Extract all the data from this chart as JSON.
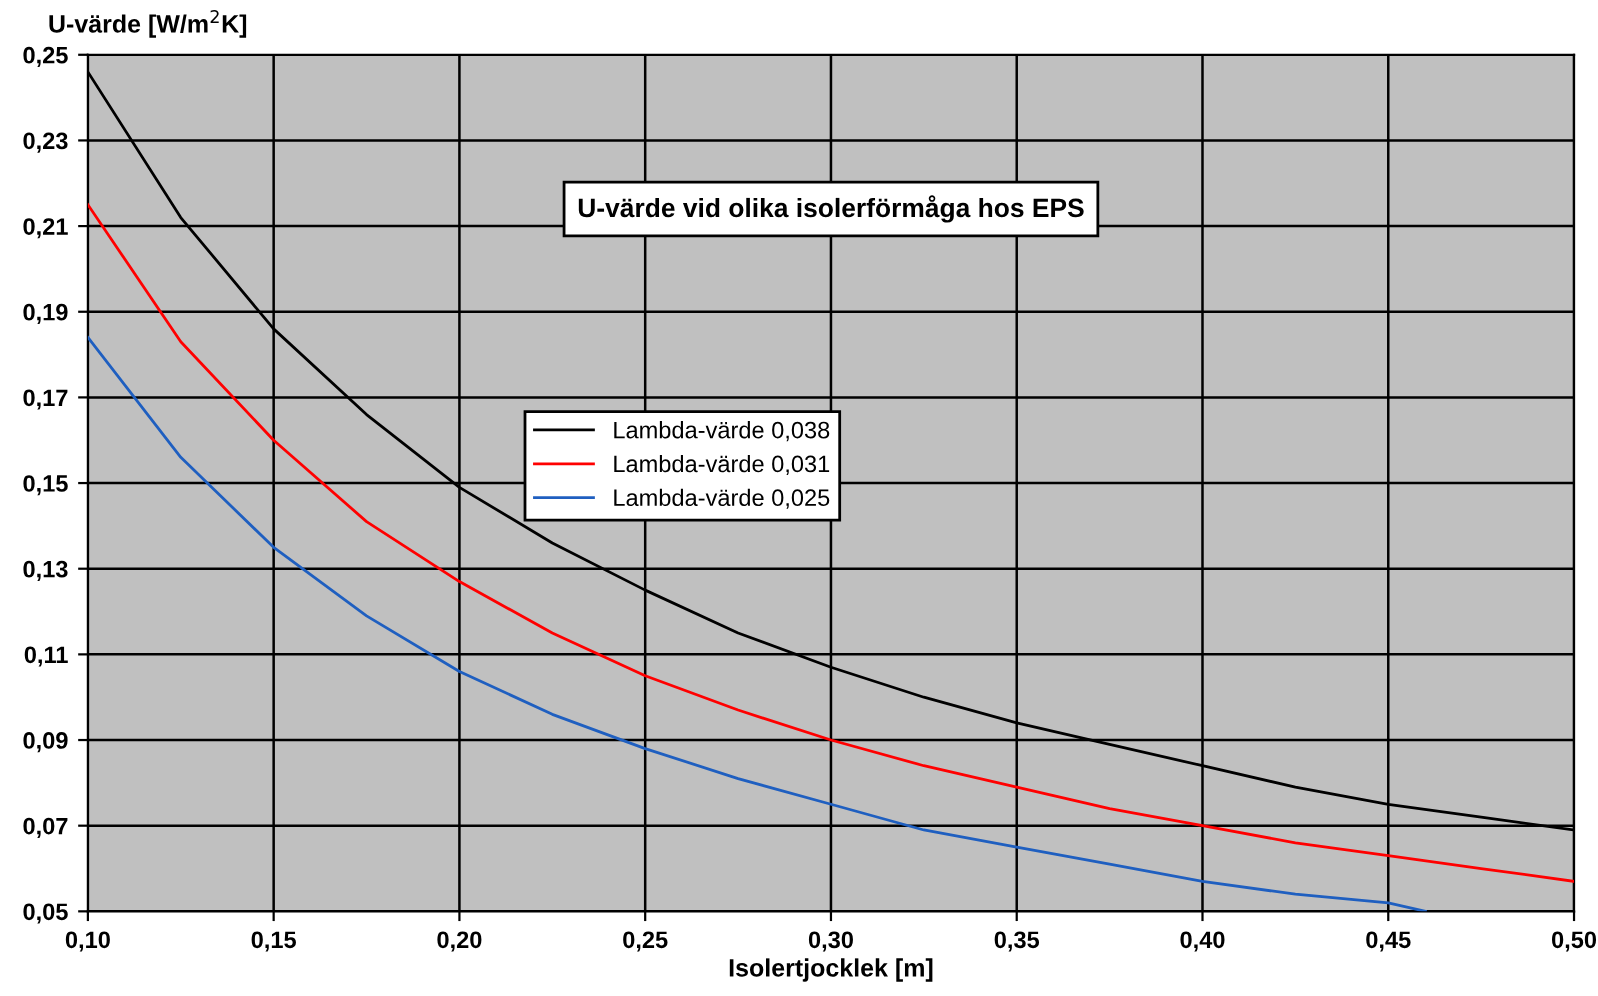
{
  "chart_data": {
    "type": "line",
    "title": "U-värde vid olika isolerförmåga hos EPS",
    "xlabel": "Isolertjocklek [m]",
    "ylabel": "U-värde [W/m$^{2}$K]",
    "xlim": [
      0.1,
      0.5
    ],
    "ylim": [
      0.05,
      0.25
    ],
    "xticks": [
      {
        "value": 0.1,
        "label": "0,10"
      },
      {
        "value": 0.15,
        "label": "0,15"
      },
      {
        "value": 0.2,
        "label": "0,20"
      },
      {
        "value": 0.25,
        "label": "0,25"
      },
      {
        "value": 0.3,
        "label": "0,30"
      },
      {
        "value": 0.35,
        "label": "0,35"
      },
      {
        "value": 0.4,
        "label": "0,40"
      },
      {
        "value": 0.45,
        "label": "0,45"
      },
      {
        "value": 0.5,
        "label": "0,50"
      }
    ],
    "yticks": [
      {
        "value": 0.05,
        "label": "0,05"
      },
      {
        "value": 0.07,
        "label": "0,07"
      },
      {
        "value": 0.09,
        "label": "0,09"
      },
      {
        "value": 0.11,
        "label": "0,11"
      },
      {
        "value": 0.13,
        "label": "0,13"
      },
      {
        "value": 0.15,
        "label": "0,15"
      },
      {
        "value": 0.17,
        "label": "0,17"
      },
      {
        "value": 0.19,
        "label": "0,19"
      },
      {
        "value": 0.21,
        "label": "0,21"
      },
      {
        "value": 0.23,
        "label": "0,23"
      },
      {
        "value": 0.25,
        "label": "0,25"
      }
    ],
    "grid": true,
    "legend": "center",
    "marker": "none",
    "line_style": "solid",
    "series": [
      {
        "name": "Lambda-värde 0,038",
        "color": "#000000",
        "x": [
          0.1,
          0.125,
          0.15,
          0.175,
          0.2,
          0.225,
          0.25,
          0.275,
          0.3,
          0.325,
          0.35,
          0.375,
          0.4,
          0.425,
          0.45,
          0.475,
          0.5
        ],
        "values": [
          0.246,
          0.212,
          0.186,
          0.166,
          0.149,
          0.136,
          0.125,
          0.115,
          0.107,
          0.1,
          0.094,
          0.089,
          0.084,
          0.079,
          0.075,
          0.072,
          0.069
        ]
      },
      {
        "name": "Lambda-värde 0,031",
        "color": "#ff0000",
        "x": [
          0.1,
          0.125,
          0.15,
          0.175,
          0.2,
          0.225,
          0.25,
          0.275,
          0.3,
          0.325,
          0.35,
          0.375,
          0.4,
          0.425,
          0.45,
          0.475,
          0.5
        ],
        "values": [
          0.215,
          0.183,
          0.16,
          0.141,
          0.127,
          0.115,
          0.105,
          0.097,
          0.09,
          0.084,
          0.079,
          0.074,
          0.07,
          0.066,
          0.063,
          0.06,
          0.057
        ]
      },
      {
        "name": "Lambda-värde 0,025",
        "color": "#1f5fc0",
        "x": [
          0.1,
          0.125,
          0.15,
          0.175,
          0.2,
          0.225,
          0.25,
          0.275,
          0.3,
          0.325,
          0.35,
          0.375,
          0.4,
          0.425,
          0.45,
          0.46
        ],
        "values": [
          0.184,
          0.156,
          0.135,
          0.119,
          0.106,
          0.096,
          0.088,
          0.081,
          0.075,
          0.069,
          0.065,
          0.061,
          0.057,
          0.054,
          0.052,
          0.05
        ]
      }
    ]
  }
}
